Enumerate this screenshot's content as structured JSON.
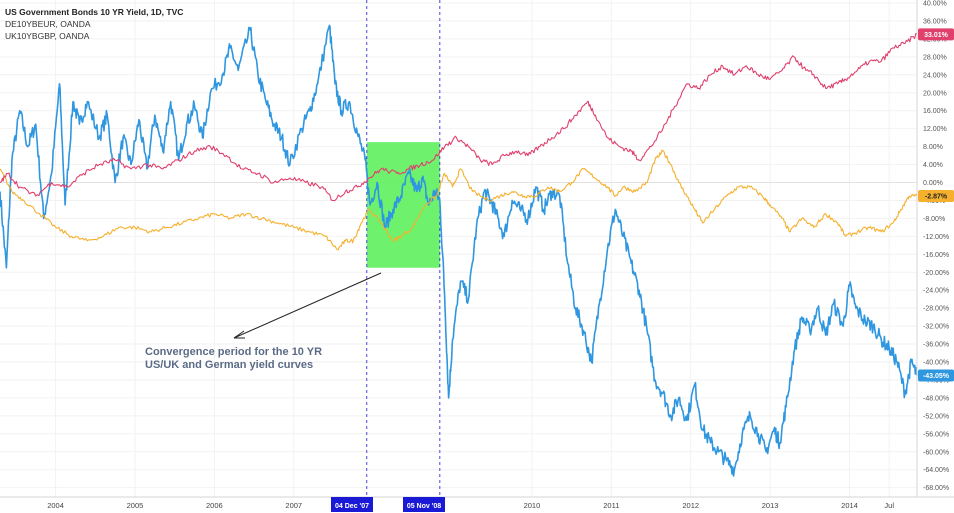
{
  "legend": {
    "title": "US Government Bonds 10 YR Yield, 1D, TVC",
    "series2": "DE10YBEUR, OANDA",
    "series3": "UK10YBGBP, OANDA"
  },
  "annotation": {
    "line1": "Convergence period for the 10 YR",
    "line2": "US/UK and German yield curves"
  },
  "date_markers": {
    "start": "04 Dec '07",
    "end": "05 Nov '08"
  },
  "colors": {
    "us": "#2f96e0",
    "de": "#f5b02e",
    "uk": "#e0406c",
    "highlight": "#5ef15e",
    "marker": "#1a1ad6",
    "grid": "#f2f2f2"
  },
  "chart_data": {
    "type": "line",
    "ylim": [
      -70,
      40
    ],
    "xlim": [
      2003.3,
      2014.85
    ],
    "y_ticks": [
      40,
      36,
      32,
      28,
      24,
      20,
      16,
      12,
      8,
      4,
      0,
      -4,
      -8,
      -12,
      -16,
      -20,
      -24,
      -28,
      -32,
      -36,
      -40,
      -44,
      -48,
      -52,
      -56,
      -60,
      -64,
      -68
    ],
    "x_ticks": [
      {
        "label": "2004",
        "x": 2004.0
      },
      {
        "label": "2005",
        "x": 2005.0
      },
      {
        "label": "2006",
        "x": 2006.0
      },
      {
        "label": "2007",
        "x": 2007.0
      },
      {
        "label": "2010",
        "x": 2010.0
      },
      {
        "label": "2011",
        "x": 2011.0
      },
      {
        "label": "2012",
        "x": 2012.0
      },
      {
        "label": "2013",
        "x": 2013.0
      },
      {
        "label": "2014",
        "x": 2014.0
      },
      {
        "label": "Jul",
        "x": 2014.5
      }
    ],
    "highlight_range": {
      "x": [
        2007.92,
        2008.84
      ],
      "y": [
        -19,
        9
      ]
    },
    "series": [
      {
        "name": "US Government Bonds 10 YR Yield",
        "color": "#2f96e0",
        "last_label": "-43.05%",
        "points": [
          [
            2003.3,
            -2
          ],
          [
            2003.38,
            -19
          ],
          [
            2003.45,
            5
          ],
          [
            2003.55,
            16
          ],
          [
            2003.65,
            8
          ],
          [
            2003.75,
            13
          ],
          [
            2003.85,
            -8
          ],
          [
            2003.95,
            2
          ],
          [
            2004.05,
            22
          ],
          [
            2004.12,
            -5
          ],
          [
            2004.22,
            18
          ],
          [
            2004.3,
            13
          ],
          [
            2004.4,
            18
          ],
          [
            2004.55,
            10
          ],
          [
            2004.65,
            15
          ],
          [
            2004.75,
            0
          ],
          [
            2004.85,
            10
          ],
          [
            2004.95,
            4
          ],
          [
            2005.05,
            14
          ],
          [
            2005.15,
            3
          ],
          [
            2005.25,
            15
          ],
          [
            2005.35,
            7
          ],
          [
            2005.45,
            18
          ],
          [
            2005.55,
            5
          ],
          [
            2005.65,
            13
          ],
          [
            2005.75,
            17
          ],
          [
            2005.85,
            10
          ],
          [
            2005.95,
            20
          ],
          [
            2006.1,
            24
          ],
          [
            2006.2,
            30
          ],
          [
            2006.3,
            25
          ],
          [
            2006.45,
            34
          ],
          [
            2006.55,
            24
          ],
          [
            2006.65,
            18
          ],
          [
            2006.75,
            13
          ],
          [
            2006.85,
            10
          ],
          [
            2006.95,
            4
          ],
          [
            2007.1,
            12
          ],
          [
            2007.2,
            16
          ],
          [
            2007.3,
            22
          ],
          [
            2007.45,
            35
          ],
          [
            2007.52,
            22
          ],
          [
            2007.6,
            16
          ],
          [
            2007.7,
            18
          ],
          [
            2007.8,
            11
          ],
          [
            2007.9,
            5
          ],
          [
            2007.96,
            -5
          ],
          [
            2008.05,
            0
          ],
          [
            2008.15,
            -10
          ],
          [
            2008.25,
            -6
          ],
          [
            2008.35,
            -3
          ],
          [
            2008.45,
            2
          ],
          [
            2008.55,
            -2
          ],
          [
            2008.62,
            1
          ],
          [
            2008.7,
            -5
          ],
          [
            2008.78,
            -2
          ],
          [
            2008.84,
            -4
          ],
          [
            2008.9,
            -25
          ],
          [
            2008.95,
            -48
          ],
          [
            2009.0,
            -35
          ],
          [
            2009.1,
            -22
          ],
          [
            2009.2,
            -26
          ],
          [
            2009.3,
            -10
          ],
          [
            2009.4,
            -2
          ],
          [
            2009.48,
            -4
          ],
          [
            2009.55,
            -7
          ],
          [
            2009.65,
            -12
          ],
          [
            2009.75,
            -4
          ],
          [
            2009.85,
            -6
          ],
          [
            2009.95,
            -8
          ],
          [
            2010.05,
            -1
          ],
          [
            2010.15,
            -6
          ],
          [
            2010.25,
            -2
          ],
          [
            2010.35,
            -3
          ],
          [
            2010.45,
            -18
          ],
          [
            2010.55,
            -28
          ],
          [
            2010.65,
            -33
          ],
          [
            2010.75,
            -40
          ],
          [
            2010.85,
            -27
          ],
          [
            2010.95,
            -15
          ],
          [
            2011.05,
            -6
          ],
          [
            2011.15,
            -12
          ],
          [
            2011.25,
            -18
          ],
          [
            2011.35,
            -24
          ],
          [
            2011.45,
            -33
          ],
          [
            2011.55,
            -44
          ],
          [
            2011.65,
            -47
          ],
          [
            2011.75,
            -52
          ],
          [
            2011.85,
            -48
          ],
          [
            2011.95,
            -53
          ],
          [
            2012.05,
            -45
          ],
          [
            2012.15,
            -55
          ],
          [
            2012.25,
            -58
          ],
          [
            2012.35,
            -60
          ],
          [
            2012.45,
            -62
          ],
          [
            2012.55,
            -64
          ],
          [
            2012.65,
            -56
          ],
          [
            2012.75,
            -52
          ],
          [
            2012.85,
            -56
          ],
          [
            2012.95,
            -60
          ],
          [
            2013.05,
            -55
          ],
          [
            2013.12,
            -58
          ],
          [
            2013.2,
            -50
          ],
          [
            2013.3,
            -38
          ],
          [
            2013.4,
            -30
          ],
          [
            2013.5,
            -33
          ],
          [
            2013.6,
            -28
          ],
          [
            2013.7,
            -34
          ],
          [
            2013.8,
            -27
          ],
          [
            2013.92,
            -32
          ],
          [
            2014.0,
            -23
          ],
          [
            2014.08,
            -28
          ],
          [
            2014.2,
            -31
          ],
          [
            2014.3,
            -32
          ],
          [
            2014.4,
            -35
          ],
          [
            2014.5,
            -37
          ],
          [
            2014.6,
            -40
          ],
          [
            2014.7,
            -47
          ],
          [
            2014.78,
            -40
          ],
          [
            2014.85,
            -43
          ]
        ]
      },
      {
        "name": "DE10YBEUR",
        "color": "#f5b02e",
        "last_label": "-2.87%",
        "points": [
          [
            2003.3,
            3
          ],
          [
            2003.45,
            -2
          ],
          [
            2003.6,
            -4
          ],
          [
            2003.8,
            -7
          ],
          [
            2004.0,
            -10
          ],
          [
            2004.2,
            -12
          ],
          [
            2004.4,
            -13
          ],
          [
            2004.6,
            -12
          ],
          [
            2004.8,
            -10
          ],
          [
            2005.0,
            -10
          ],
          [
            2005.2,
            -11
          ],
          [
            2005.4,
            -10
          ],
          [
            2005.6,
            -9
          ],
          [
            2005.8,
            -8
          ],
          [
            2006.0,
            -7
          ],
          [
            2006.2,
            -8
          ],
          [
            2006.4,
            -7
          ],
          [
            2006.6,
            -8
          ],
          [
            2006.8,
            -9
          ],
          [
            2007.0,
            -10
          ],
          [
            2007.2,
            -11
          ],
          [
            2007.4,
            -12
          ],
          [
            2007.55,
            -15
          ],
          [
            2007.65,
            -13
          ],
          [
            2007.75,
            -13
          ],
          [
            2007.85,
            -9
          ],
          [
            2007.95,
            -6
          ],
          [
            2008.1,
            -9
          ],
          [
            2008.25,
            -13
          ],
          [
            2008.35,
            -12
          ],
          [
            2008.5,
            -10
          ],
          [
            2008.65,
            -5
          ],
          [
            2008.8,
            -3
          ],
          [
            2008.9,
            2
          ],
          [
            2009.0,
            -1
          ],
          [
            2009.1,
            3
          ],
          [
            2009.25,
            -2
          ],
          [
            2009.45,
            -4
          ],
          [
            2009.6,
            -3
          ],
          [
            2009.75,
            -2
          ],
          [
            2009.9,
            -3
          ],
          [
            2010.05,
            -3
          ],
          [
            2010.2,
            -1
          ],
          [
            2010.35,
            -2
          ],
          [
            2010.5,
            0
          ],
          [
            2010.65,
            3
          ],
          [
            2010.8,
            1
          ],
          [
            2010.95,
            -1
          ],
          [
            2011.05,
            -3
          ],
          [
            2011.15,
            -1
          ],
          [
            2011.3,
            -2
          ],
          [
            2011.45,
            0
          ],
          [
            2011.55,
            5
          ],
          [
            2011.65,
            7
          ],
          [
            2011.75,
            4
          ],
          [
            2011.85,
            0
          ],
          [
            2011.95,
            -3
          ],
          [
            2012.05,
            -6
          ],
          [
            2012.15,
            -9
          ],
          [
            2012.3,
            -6
          ],
          [
            2012.45,
            -3
          ],
          [
            2012.6,
            -1
          ],
          [
            2012.75,
            -1
          ],
          [
            2012.9,
            -3
          ],
          [
            2013.0,
            -5
          ],
          [
            2013.15,
            -8
          ],
          [
            2013.25,
            -11
          ],
          [
            2013.4,
            -8
          ],
          [
            2013.55,
            -10
          ],
          [
            2013.7,
            -7
          ],
          [
            2013.85,
            -9
          ],
          [
            2013.95,
            -12
          ],
          [
            2014.1,
            -11
          ],
          [
            2014.25,
            -10
          ],
          [
            2014.4,
            -11
          ],
          [
            2014.55,
            -9
          ],
          [
            2014.65,
            -6
          ],
          [
            2014.75,
            -3
          ],
          [
            2014.85,
            -3
          ]
        ]
      },
      {
        "name": "UK10YBGBP",
        "color": "#e0406c",
        "last_label": "33.01%",
        "points": [
          [
            2003.3,
            0
          ],
          [
            2003.4,
            2
          ],
          [
            2003.55,
            -1
          ],
          [
            2003.75,
            -3
          ],
          [
            2003.95,
            0
          ],
          [
            2004.15,
            -1
          ],
          [
            2004.35,
            2
          ],
          [
            2004.55,
            4
          ],
          [
            2004.75,
            5
          ],
          [
            2004.95,
            3
          ],
          [
            2005.15,
            4
          ],
          [
            2005.35,
            3
          ],
          [
            2005.55,
            5
          ],
          [
            2005.75,
            7
          ],
          [
            2005.95,
            8
          ],
          [
            2006.15,
            6
          ],
          [
            2006.35,
            3
          ],
          [
            2006.55,
            2
          ],
          [
            2006.75,
            0
          ],
          [
            2006.95,
            1
          ],
          [
            2007.15,
            0
          ],
          [
            2007.35,
            -1
          ],
          [
            2007.5,
            -4
          ],
          [
            2007.65,
            -2
          ],
          [
            2007.8,
            -1
          ],
          [
            2007.95,
            1
          ],
          [
            2008.1,
            3
          ],
          [
            2008.3,
            2
          ],
          [
            2008.45,
            3
          ],
          [
            2008.6,
            4
          ],
          [
            2008.75,
            5
          ],
          [
            2008.9,
            8
          ],
          [
            2009.05,
            10
          ],
          [
            2009.2,
            8
          ],
          [
            2009.35,
            5
          ],
          [
            2009.5,
            4
          ],
          [
            2009.65,
            6
          ],
          [
            2009.8,
            7
          ],
          [
            2009.95,
            6
          ],
          [
            2010.1,
            8
          ],
          [
            2010.25,
            10
          ],
          [
            2010.4,
            12
          ],
          [
            2010.55,
            15
          ],
          [
            2010.7,
            18
          ],
          [
            2010.8,
            15
          ],
          [
            2010.95,
            10
          ],
          [
            2011.1,
            8
          ],
          [
            2011.25,
            7
          ],
          [
            2011.35,
            5
          ],
          [
            2011.5,
            8
          ],
          [
            2011.65,
            12
          ],
          [
            2011.8,
            17
          ],
          [
            2011.95,
            22
          ],
          [
            2012.1,
            21
          ],
          [
            2012.25,
            24
          ],
          [
            2012.4,
            26
          ],
          [
            2012.55,
            24
          ],
          [
            2012.7,
            26
          ],
          [
            2012.85,
            24
          ],
          [
            2013.0,
            23
          ],
          [
            2013.15,
            25
          ],
          [
            2013.3,
            28
          ],
          [
            2013.45,
            25
          ],
          [
            2013.55,
            24
          ],
          [
            2013.7,
            21
          ],
          [
            2013.85,
            22
          ],
          [
            2013.95,
            23
          ],
          [
            2014.1,
            25
          ],
          [
            2014.25,
            27
          ],
          [
            2014.4,
            27
          ],
          [
            2014.55,
            30
          ],
          [
            2014.7,
            31
          ],
          [
            2014.85,
            33
          ]
        ]
      }
    ]
  }
}
